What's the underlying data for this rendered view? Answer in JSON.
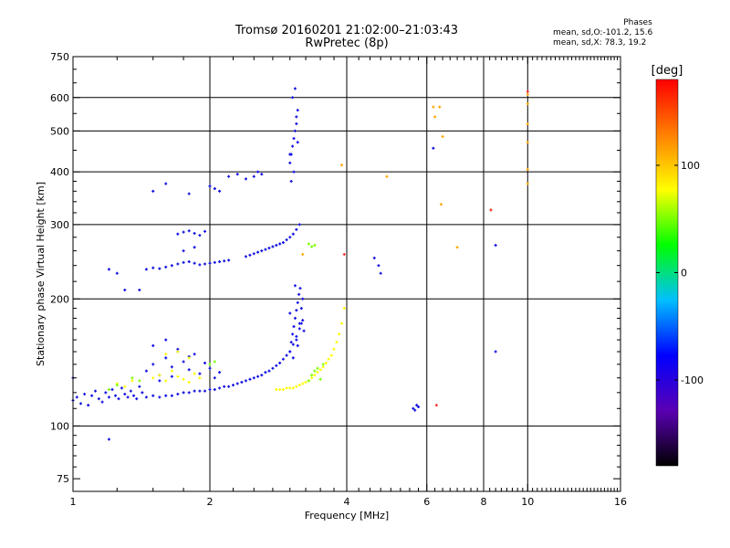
{
  "header": {
    "title_line1": "Tromsø 20160201 21:02:00–21:03:43",
    "title_line2": "RwPretec (8p)"
  },
  "legend": {
    "title": "Phases",
    "line1": "mean, sd,O:-101.2, 15.6",
    "line2": "mean, sd,X:  78.3, 19.2"
  },
  "colorbar": {
    "label": "[deg]",
    "ticks": [
      {
        "value": 100,
        "label": "100"
      },
      {
        "value": 0,
        "label": "0"
      },
      {
        "value": -100,
        "label": "-100"
      }
    ],
    "range": [
      -180,
      180
    ],
    "colors": [
      "#000000",
      "#5a00b4",
      "#0000ff",
      "#00bfff",
      "#00ff00",
      "#ffff00",
      "#ff8000",
      "#ff0000"
    ]
  },
  "chart_data": {
    "type": "scatter",
    "xlabel": "Frequency [MHz]",
    "ylabel": "Stationary phase Virtual Height [km]",
    "xscale": "log",
    "yscale": "log",
    "xlim": [
      1,
      16
    ],
    "ylim": [
      70,
      750
    ],
    "xticks": [
      {
        "value": 1,
        "label": "1"
      },
      {
        "value": 2,
        "label": "2"
      },
      {
        "value": 4,
        "label": "4"
      },
      {
        "value": 6,
        "label": "6"
      },
      {
        "value": 8,
        "label": "8"
      },
      {
        "value": 10,
        "label": "10"
      },
      {
        "value": 16,
        "label": "16"
      }
    ],
    "yticks": [
      {
        "value": 75,
        "label": "75"
      },
      {
        "value": 100,
        "label": "100"
      },
      {
        "value": 200,
        "label": "200"
      },
      {
        "value": 300,
        "label": "300"
      },
      {
        "value": 400,
        "label": "400"
      },
      {
        "value": 500,
        "label": "500"
      },
      {
        "value": 600,
        "label": "600"
      },
      {
        "value": 750,
        "label": "750"
      }
    ],
    "x_gridlines": [
      2,
      4,
      6,
      8,
      10
    ],
    "y_gridlines": [
      100,
      200,
      300,
      400,
      500,
      600
    ],
    "color_by": "phase [deg]",
    "series": [
      {
        "color": "#1010e0",
        "x": [
          1.0,
          1.02,
          1.04,
          1.06,
          1.08,
          1.1,
          1.12,
          1.14,
          1.16,
          1.18,
          1.2,
          1.22,
          1.24,
          1.26,
          1.28,
          1.3,
          1.32,
          1.34,
          1.36,
          1.38,
          1.4,
          1.42
        ],
        "y": [
          115,
          117,
          113,
          119,
          112,
          118,
          121,
          116,
          114,
          120,
          117,
          122,
          118,
          116,
          123,
          119,
          117,
          121,
          118,
          116,
          124,
          120
        ]
      },
      {
        "color": "#1010e0",
        "x": [
          1.45,
          1.5,
          1.55,
          1.6,
          1.65,
          1.7,
          1.75,
          1.8,
          1.85,
          1.9,
          1.95,
          2.0,
          2.05,
          2.1,
          2.15,
          2.2,
          2.25,
          2.3,
          2.35,
          2.4,
          2.45,
          2.5,
          2.55,
          2.6,
          2.65,
          2.7,
          2.75,
          2.8,
          2.85,
          2.9,
          2.95,
          3.0,
          3.05,
          3.1,
          3.15
        ],
        "y": [
          117,
          118,
          117,
          118,
          118,
          119,
          120,
          120,
          121,
          121,
          121,
          122,
          122,
          123,
          124,
          124,
          125,
          126,
          127,
          128,
          129,
          130,
          131,
          132,
          134,
          135,
          137,
          139,
          141,
          144,
          147,
          150,
          156,
          163,
          175
        ]
      },
      {
        "color": "#1010e0",
        "x": [
          3.0,
          3.02,
          3.04,
          3.06,
          3.08,
          3.1,
          3.12,
          3.14,
          3.16,
          3.18,
          3.2,
          3.22,
          3.1,
          3.05,
          3.15,
          3.2,
          3.0,
          3.08,
          3.12,
          3.18
        ],
        "y": [
          150,
          158,
          165,
          172,
          180,
          188,
          196,
          205,
          212,
          190,
          178,
          168,
          160,
          145,
          170,
          200,
          185,
          215,
          155,
          175
        ]
      },
      {
        "color": "#1010e0",
        "x": [
          1.45,
          1.5,
          1.55,
          1.6,
          1.65,
          1.7,
          1.75,
          1.8,
          1.85,
          1.9,
          1.95,
          2.0,
          2.05,
          2.1,
          1.5,
          1.6,
          1.7,
          1.8,
          1.55,
          1.65
        ],
        "y": [
          135,
          140,
          132,
          145,
          138,
          150,
          142,
          136,
          148,
          133,
          141,
          137,
          130,
          134,
          155,
          160,
          152,
          146,
          128,
          131
        ]
      },
      {
        "color": "#1010e0",
        "x": [
          1.45,
          1.5,
          1.55,
          1.6,
          1.65,
          1.7,
          1.75,
          1.8,
          1.85,
          1.9,
          1.95,
          2.0,
          2.05,
          2.1,
          2.15,
          2.2
        ],
        "y": [
          235,
          237,
          236,
          238,
          240,
          242,
          244,
          245,
          243,
          241,
          242,
          243,
          244,
          245,
          246,
          247
        ]
      },
      {
        "color": "#1010e0",
        "x": [
          2.4,
          2.45,
          2.5,
          2.55,
          2.6,
          2.65,
          2.7,
          2.75,
          2.8,
          2.85,
          2.9,
          2.95,
          3.0,
          3.05,
          3.1,
          3.15
        ],
        "y": [
          252,
          254,
          256,
          258,
          260,
          262,
          264,
          266,
          268,
          270,
          272,
          276,
          280,
          285,
          292,
          300
        ]
      },
      {
        "color": "#1010e0",
        "x": [
          1.7,
          1.75,
          1.8,
          1.85,
          1.9,
          1.95,
          1.75,
          1.85
        ],
        "y": [
          285,
          288,
          290,
          286,
          283,
          289,
          260,
          265
        ]
      },
      {
        "color": "#1010e0",
        "x": [
          3.0,
          3.02,
          3.04,
          3.06,
          3.08,
          3.1,
          3.12,
          3.02,
          3.06,
          3.1,
          3.04,
          3.08,
          3.0,
          3.12
        ],
        "y": [
          420,
          440,
          460,
          480,
          500,
          520,
          560,
          380,
          400,
          540,
          600,
          630,
          440,
          470
        ]
      },
      {
        "color": "#1010e0",
        "x": [
          2.0,
          2.05,
          2.1,
          2.2,
          2.3,
          2.4,
          2.5,
          2.55,
          2.6,
          1.5,
          1.6,
          1.8
        ],
        "y": [
          370,
          365,
          360,
          390,
          395,
          385,
          390,
          400,
          395,
          360,
          375,
          355
        ]
      },
      {
        "color": "#1010e0",
        "x": [
          1.2,
          1.3,
          1.4,
          1.25,
          1.0,
          1.2,
          4.6,
          4.7,
          4.75,
          5.6,
          5.7,
          5.75,
          5.65,
          6.2,
          8.5,
          8.5
        ],
        "y": [
          235,
          210,
          210,
          230,
          130,
          93,
          250,
          240,
          230,
          110,
          112,
          111,
          109,
          455,
          268,
          150
        ]
      },
      {
        "color": "#ffff00",
        "x": [
          2.8,
          2.85,
          2.9,
          2.95,
          3.0,
          3.05,
          3.1,
          3.15,
          3.2,
          3.25,
          3.3,
          3.35,
          3.4,
          3.45,
          3.5,
          3.55,
          3.6,
          3.65,
          3.7,
          3.75,
          3.8,
          3.85,
          3.9,
          3.95
        ],
        "y": [
          122,
          122,
          122,
          123,
          123,
          123,
          124,
          125,
          126,
          127,
          128,
          130,
          132,
          134,
          136,
          138,
          141,
          144,
          147,
          152,
          158,
          165,
          175,
          190
        ]
      },
      {
        "color": "#ffff00",
        "x": [
          1.5,
          1.55,
          1.6,
          1.65,
          1.7,
          1.75,
          1.8,
          1.85,
          1.9,
          1.6,
          1.7,
          1.8,
          1.25,
          1.3,
          1.35
        ],
        "y": [
          130,
          132,
          128,
          135,
          131,
          129,
          127,
          133,
          130,
          148,
          150,
          145,
          126,
          124,
          128
        ]
      },
      {
        "color": "#7cff00",
        "x": [
          3.3,
          3.35,
          3.4,
          3.5,
          3.55,
          3.45,
          2.0,
          2.05,
          1.35,
          1.4,
          1.2,
          1.25,
          3.3,
          3.35,
          3.4
        ],
        "y": [
          128,
          132,
          135,
          129,
          140,
          137,
          140,
          142,
          130,
          128,
          122,
          125,
          270,
          266,
          268
        ]
      },
      {
        "color": "#ffa500",
        "x": [
          6.2,
          6.25,
          6.4,
          6.5,
          6.45,
          7.0,
          8.3,
          10.0,
          10.0,
          10.0,
          10.0,
          10.0,
          10.0,
          3.9,
          4.9,
          3.2
        ],
        "y": [
          570,
          540,
          570,
          485,
          335,
          265,
          325,
          610,
          580,
          520,
          470,
          405,
          375,
          415,
          390,
          255
        ]
      },
      {
        "color": "#ff3030",
        "x": [
          6.3,
          8.3,
          3.95,
          10.0
        ],
        "y": [
          112,
          325,
          255,
          620
        ]
      }
    ]
  }
}
